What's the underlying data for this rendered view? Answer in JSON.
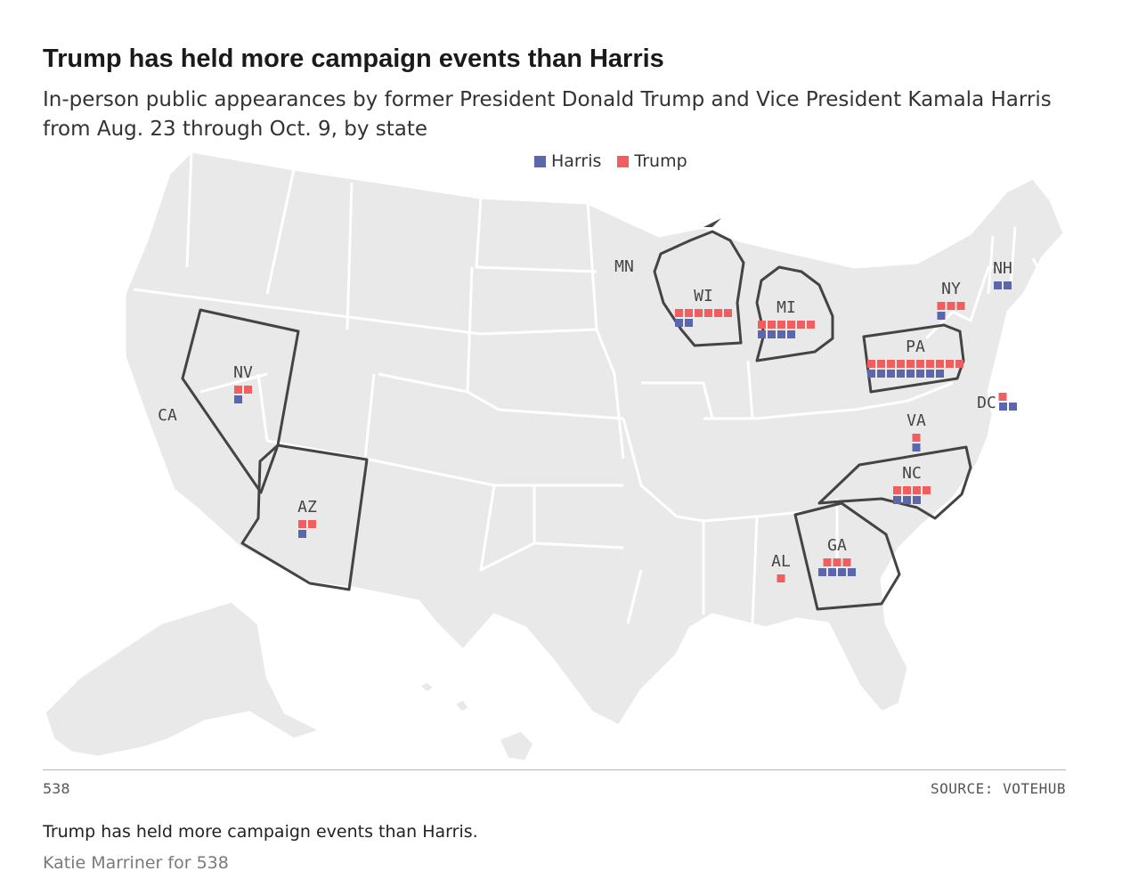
{
  "title": "Trump has held more campaign events than Harris",
  "subtitle": "In-person public appearances by former President Donald Trump and Vice President Kamala Harris from Aug. 23 through Oct. 9, by state",
  "legend": [
    {
      "name": "Harris",
      "color": "#5b66ad"
    },
    {
      "name": "Trump",
      "color": "#f25d5d"
    }
  ],
  "colors": {
    "harris": "#5b66ad",
    "trump": "#f25d5d",
    "land": "#e9e9e9",
    "state_border": "#ffffff",
    "highlight_border": "#444444"
  },
  "chart_data": {
    "type": "map",
    "title": "Trump has held more campaign events than Harris",
    "unit": "in-person public appearances",
    "series": [
      {
        "name": "Harris",
        "color": "#5b66ad"
      },
      {
        "name": "Trump",
        "color": "#f25d5d"
      }
    ],
    "states": [
      {
        "abbr": "NV",
        "harris": 1,
        "trump": 2
      },
      {
        "abbr": "AZ",
        "harris": 1,
        "trump": 2
      },
      {
        "abbr": "WI",
        "harris": 2,
        "trump": 6
      },
      {
        "abbr": "MI",
        "harris": 4,
        "trump": 6
      },
      {
        "abbr": "PA",
        "harris": 8,
        "trump": 10
      },
      {
        "abbr": "NY",
        "harris": 1,
        "trump": 3
      },
      {
        "abbr": "NH",
        "harris": 2,
        "trump": 0
      },
      {
        "abbr": "DC",
        "harris": 2,
        "trump": 1
      },
      {
        "abbr": "VA",
        "harris": 1,
        "trump": 1
      },
      {
        "abbr": "NC",
        "harris": 3,
        "trump": 4
      },
      {
        "abbr": "GA",
        "harris": 4,
        "trump": 3
      },
      {
        "abbr": "AL",
        "harris": 0,
        "trump": 1
      }
    ],
    "unlabeled_marks": [
      {
        "abbr": "CA",
        "harris": 0,
        "trump": 0
      },
      {
        "abbr": "MN",
        "harris": 0,
        "trump": 0
      }
    ]
  },
  "footer": {
    "brand": "538",
    "source": "SOURCE: VOTEHUB"
  },
  "caption": "Trump has held more campaign events than Harris.",
  "credit": "Katie Marriner for 538"
}
